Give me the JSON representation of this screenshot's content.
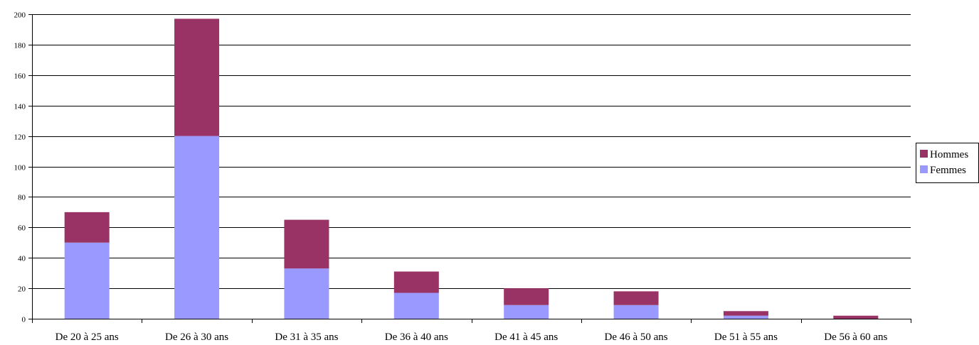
{
  "chart_data": {
    "type": "bar",
    "stacked": true,
    "categories": [
      "De 20 à 25 ans",
      "De 26  à 30 ans",
      "De 31 à 35 ans",
      "De 36 à 40 ans",
      "De 41 à 45 ans",
      "De 46 à 50 ans",
      "De 51 à 55 ans",
      "De 56 à 60 ans"
    ],
    "series": [
      {
        "name": "Femmes",
        "color": "#9999ff",
        "values": [
          50,
          120,
          33,
          17,
          9,
          9,
          2,
          0
        ]
      },
      {
        "name": "Hommes",
        "color": "#993366",
        "values": [
          20,
          77,
          32,
          14,
          11,
          9,
          3,
          2
        ]
      }
    ],
    "legend_order": [
      "Hommes",
      "Femmes"
    ],
    "ylim": [
      0,
      200
    ],
    "yticks": [
      0,
      20,
      40,
      60,
      80,
      100,
      120,
      140,
      160,
      180,
      200
    ],
    "grid": true,
    "legend_position": "right"
  }
}
